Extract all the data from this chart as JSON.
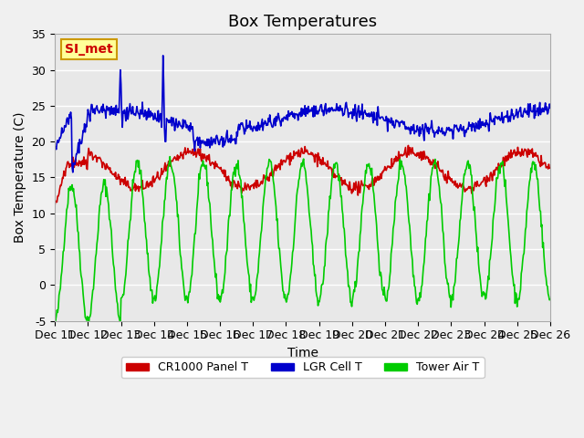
{
  "title": "Box Temperatures",
  "xlabel": "Time",
  "ylabel": "Box Temperature (C)",
  "ylim": [
    -5,
    35
  ],
  "xlim": [
    0,
    15
  ],
  "x_tick_labels": [
    "Dec 11",
    "Dec 12",
    "Dec 13",
    "Dec 14",
    "Dec 15",
    "Dec 16",
    "Dec 17",
    "Dec 18",
    "Dec 19",
    "Dec 20",
    "Dec 21",
    "Dec 22",
    "Dec 23",
    "Dec 24",
    "Dec 25",
    "Dec 26"
  ],
  "legend_labels": [
    "CR1000 Panel T",
    "LGR Cell T",
    "Tower Air T"
  ],
  "legend_colors": [
    "#cc0000",
    "#0000cc",
    "#00cc00"
  ],
  "annotation_text": "SI_met",
  "annotation_bg": "#ffff99",
  "annotation_border": "#cc9900",
  "bg_color": "#e8e8e8",
  "grid_color": "#ffffff",
  "title_fontsize": 13,
  "label_fontsize": 10,
  "tick_fontsize": 9
}
